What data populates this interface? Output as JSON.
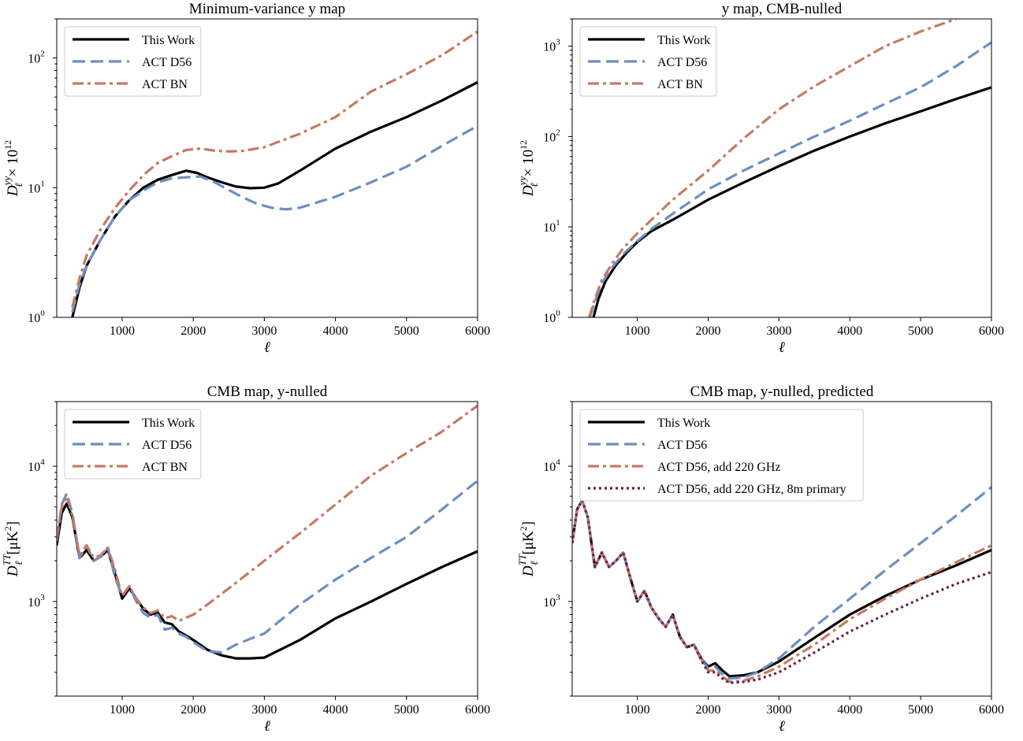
{
  "colors": {
    "black": "#000000",
    "blue": "#6b8fc3",
    "red": "#c67a62",
    "purple": "#6b1f4e"
  },
  "chart_data": [
    {
      "type": "line",
      "title": "Minimum-variance y map",
      "xlabel": "ℓ",
      "ylabel": "D_ℓ^yy × 10^12",
      "xlim": [
        80,
        6000
      ],
      "ylim": [
        1,
        200
      ],
      "yscale": "log",
      "xticks": [
        1000,
        2000,
        3000,
        4000,
        5000,
        6000
      ],
      "yticks": [
        {
          "value": 1,
          "base": "10",
          "exp": "0"
        },
        {
          "value": 10,
          "base": "10",
          "exp": "1"
        },
        {
          "value": 100,
          "base": "10",
          "exp": "2"
        }
      ],
      "legend_position": "top-left",
      "series": [
        {
          "name": "This Work",
          "color": "#000000",
          "style": "solid",
          "x": [
            300,
            400,
            500,
            700,
            900,
            1100,
            1300,
            1500,
            1700,
            1900,
            2050,
            2200,
            2400,
            2600,
            2800,
            3000,
            3200,
            3500,
            4000,
            4500,
            5000,
            5500,
            6000
          ],
          "y": [
            1.0,
            1.7,
            2.5,
            4.0,
            6.0,
            8.0,
            10.0,
            11.5,
            12.5,
            13.5,
            13.0,
            12.0,
            11.0,
            10.2,
            9.9,
            10.0,
            10.8,
            13.5,
            20.0,
            27.0,
            35.0,
            47.0,
            65.0
          ]
        },
        {
          "name": "ACT D56",
          "color": "#6b8fc3",
          "style": "dashed",
          "x": [
            300,
            400,
            500,
            700,
            900,
            1100,
            1300,
            1500,
            1700,
            1900,
            2100,
            2300,
            2500,
            2700,
            2900,
            3100,
            3300,
            3500,
            4000,
            4500,
            5000,
            5500,
            6000
          ],
          "y": [
            1.1,
            1.8,
            2.5,
            4.0,
            6.0,
            8.0,
            9.5,
            11.0,
            11.8,
            12.0,
            12.2,
            11.0,
            9.6,
            8.4,
            7.5,
            7.0,
            6.8,
            7.0,
            8.5,
            11.0,
            14.5,
            21.0,
            30.0
          ]
        },
        {
          "name": "ACT BN",
          "color": "#c67a62",
          "style": "dashdot",
          "x": [
            300,
            400,
            500,
            700,
            900,
            1100,
            1300,
            1500,
            1700,
            1900,
            2100,
            2300,
            2500,
            2700,
            3000,
            3500,
            4000,
            4500,
            5000,
            5500,
            6000
          ],
          "y": [
            1.2,
            2.0,
            3.0,
            4.8,
            7.0,
            9.5,
            12.5,
            15.5,
            17.5,
            19.5,
            20.0,
            19.3,
            19.0,
            19.2,
            20.5,
            26.0,
            35.0,
            55.0,
            75.0,
            105.0,
            160.0
          ]
        }
      ]
    },
    {
      "type": "line",
      "title": "y map, CMB-nulled",
      "xlabel": "ℓ",
      "ylabel": "D_ℓ^yy × 10^12",
      "xlim": [
        80,
        6000
      ],
      "ylim": [
        1,
        2000
      ],
      "yscale": "log",
      "xticks": [
        1000,
        2000,
        3000,
        4000,
        5000,
        6000
      ],
      "yticks": [
        {
          "value": 1,
          "base": "10",
          "exp": "0"
        },
        {
          "value": 10,
          "base": "10",
          "exp": "1"
        },
        {
          "value": 100,
          "base": "10",
          "exp": "2"
        },
        {
          "value": 1000,
          "base": "10",
          "exp": "3"
        }
      ],
      "legend_position": "top-left",
      "series": [
        {
          "name": "This Work",
          "color": "#000000",
          "style": "solid",
          "x": [
            380,
            450,
            550,
            700,
            850,
            1000,
            1200,
            1500,
            2000,
            2500,
            3000,
            3500,
            4000,
            4500,
            5000,
            5500,
            6000
          ],
          "y": [
            1.0,
            1.6,
            2.5,
            3.8,
            5.2,
            6.8,
            9.0,
            12.0,
            20.0,
            31.0,
            47.0,
            70.0,
            100.0,
            140.0,
            190.0,
            260.0,
            350.0
          ]
        },
        {
          "name": "ACT D56",
          "color": "#6b8fc3",
          "style": "dashed",
          "x": [
            330,
            400,
            500,
            650,
            800,
            1000,
            1200,
            1500,
            2000,
            2500,
            3000,
            3500,
            4000,
            4500,
            5000,
            5500,
            6000
          ],
          "y": [
            1.0,
            1.5,
            2.4,
            3.6,
            5.0,
            7.0,
            9.5,
            14.0,
            26.0,
            42.0,
            65.0,
            100.0,
            150.0,
            230.0,
            350.0,
            600.0,
            1100.0
          ]
        },
        {
          "name": "ACT BN",
          "color": "#c67a62",
          "style": "dashdot",
          "x": [
            320,
            400,
            500,
            650,
            800,
            1000,
            1200,
            1500,
            2000,
            2500,
            3000,
            3500,
            4000,
            4500,
            5000,
            5500
          ],
          "y": [
            1.0,
            1.6,
            2.6,
            4.0,
            5.8,
            8.5,
            12.0,
            20.0,
            42.0,
            95.0,
            200.0,
            360.0,
            600.0,
            1000.0,
            1450.0,
            2000.0
          ]
        }
      ]
    },
    {
      "type": "line",
      "title": "CMB map, y-nulled",
      "xlabel": "ℓ",
      "ylabel": "D_ℓ^TT [μK²]",
      "xlim": [
        80,
        6000
      ],
      "ylim": [
        200,
        30000
      ],
      "yscale": "log",
      "xticks": [
        1000,
        2000,
        3000,
        4000,
        5000,
        6000
      ],
      "yticks": [
        {
          "value": 1000,
          "base": "10",
          "exp": "3"
        },
        {
          "value": 10000,
          "base": "10",
          "exp": "4"
        }
      ],
      "legend_position": "top-left",
      "series": [
        {
          "name": "This Work",
          "color": "#000000",
          "style": "solid",
          "x": [
            80,
            150,
            220,
            300,
            400,
            500,
            600,
            700,
            800,
            900,
            1000,
            1100,
            1200,
            1300,
            1400,
            1500,
            1600,
            1700,
            1800,
            1900,
            2000,
            2200,
            2400,
            2600,
            2800,
            3000,
            3500,
            4000,
            4500,
            5000,
            5500,
            6000
          ],
          "y": [
            2600,
            4500,
            5300,
            4200,
            2100,
            2400,
            2000,
            2150,
            2400,
            1600,
            1050,
            1250,
            1050,
            880,
            800,
            830,
            700,
            680,
            600,
            560,
            520,
            440,
            400,
            380,
            380,
            385,
            520,
            750,
            1000,
            1350,
            1800,
            2350
          ]
        },
        {
          "name": "ACT D56",
          "color": "#6b8fc3",
          "style": "dashed",
          "x": [
            80,
            150,
            220,
            300,
            400,
            500,
            600,
            700,
            800,
            900,
            1000,
            1100,
            1200,
            1300,
            1400,
            1500,
            1600,
            1700,
            1800,
            1900,
            2000,
            2200,
            2400,
            2600,
            2800,
            3000,
            3500,
            4000,
            4500,
            5000,
            5500,
            6000
          ],
          "y": [
            2800,
            5200,
            6300,
            4500,
            2100,
            2600,
            2000,
            2150,
            2500,
            1500,
            1100,
            1300,
            1000,
            820,
            760,
            800,
            620,
            640,
            580,
            550,
            500,
            430,
            420,
            480,
            530,
            580,
            950,
            1450,
            2100,
            3000,
            4800,
            7800
          ]
        },
        {
          "name": "ACT BN",
          "color": "#c67a62",
          "style": "dashdot",
          "x": [
            80,
            150,
            220,
            300,
            400,
            500,
            600,
            700,
            800,
            900,
            1000,
            1100,
            1200,
            1300,
            1400,
            1500,
            1600,
            1700,
            1800,
            1900,
            2000,
            2200,
            2500,
            3000,
            3500,
            4000,
            4500,
            5000,
            5500,
            6000
          ],
          "y": [
            3000,
            5000,
            6000,
            4300,
            2200,
            2600,
            2100,
            2200,
            2500,
            1700,
            1100,
            1300,
            1050,
            900,
            820,
            860,
            750,
            780,
            720,
            760,
            800,
            950,
            1250,
            2000,
            3200,
            5200,
            8500,
            12500,
            18000,
            28000
          ]
        }
      ]
    },
    {
      "type": "line",
      "title": "CMB map, y-nulled, predicted",
      "xlabel": "ℓ",
      "ylabel": "D_ℓ^TT [μK²]",
      "xlim": [
        80,
        6000
      ],
      "ylim": [
        200,
        30000
      ],
      "yscale": "log",
      "xticks": [
        1000,
        2000,
        3000,
        4000,
        5000,
        6000
      ],
      "yticks": [
        {
          "value": 1000,
          "base": "10",
          "exp": "3"
        },
        {
          "value": 10000,
          "base": "10",
          "exp": "4"
        }
      ],
      "legend_position": "top-left",
      "series": [
        {
          "name": "This Work",
          "color": "#000000",
          "style": "solid",
          "x": [
            80,
            150,
            220,
            300,
            400,
            500,
            600,
            700,
            800,
            900,
            1000,
            1100,
            1200,
            1300,
            1400,
            1500,
            1600,
            1700,
            1800,
            1900,
            2000,
            2100,
            2200,
            2300,
            2500,
            2700,
            3000,
            3500,
            4000,
            4500,
            5000,
            5500,
            6000
          ],
          "y": [
            2700,
            4800,
            5600,
            4200,
            1800,
            2300,
            1800,
            2000,
            2300,
            1500,
            1000,
            1200,
            900,
            750,
            650,
            800,
            550,
            460,
            480,
            380,
            330,
            350,
            310,
            280,
            285,
            300,
            360,
            540,
            800,
            1100,
            1450,
            1850,
            2400
          ]
        },
        {
          "name": "ACT D56",
          "color": "#6b8fc3",
          "style": "dashed",
          "x": [
            80,
            150,
            220,
            300,
            400,
            500,
            600,
            700,
            800,
            900,
            1000,
            1100,
            1200,
            1300,
            1400,
            1500,
            1600,
            1700,
            1800,
            1900,
            2000,
            2100,
            2200,
            2300,
            2500,
            2700,
            3000,
            3500,
            4000,
            4500,
            5000,
            5500,
            6000
          ],
          "y": [
            2700,
            4800,
            5600,
            4200,
            1800,
            2300,
            1800,
            2000,
            2300,
            1500,
            1000,
            1200,
            900,
            750,
            650,
            800,
            550,
            460,
            480,
            380,
            320,
            330,
            290,
            270,
            275,
            300,
            380,
            650,
            1050,
            1700,
            2700,
            4300,
            7000
          ]
        },
        {
          "name": "ACT D56, add 220 GHz",
          "color": "#c67a62",
          "style": "dashdot",
          "x": [
            80,
            150,
            220,
            300,
            400,
            500,
            600,
            700,
            800,
            900,
            1000,
            1100,
            1200,
            1300,
            1400,
            1500,
            1600,
            1700,
            1800,
            1900,
            2000,
            2100,
            2200,
            2300,
            2500,
            2700,
            3000,
            3500,
            4000,
            4500,
            5000,
            5500,
            6000
          ],
          "y": [
            2700,
            4800,
            5600,
            4200,
            1800,
            2300,
            1800,
            2000,
            2300,
            1500,
            1000,
            1200,
            900,
            750,
            650,
            800,
            550,
            460,
            480,
            370,
            310,
            310,
            280,
            255,
            260,
            280,
            330,
            480,
            740,
            1050,
            1450,
            1950,
            2600
          ]
        },
        {
          "name": "ACT D56, add 220 GHz, 8m primary",
          "color": "#6b1f4e",
          "style": "dotted",
          "x": [
            80,
            150,
            220,
            300,
            400,
            500,
            600,
            700,
            800,
            900,
            1000,
            1100,
            1200,
            1300,
            1400,
            1500,
            1600,
            1700,
            1800,
            1900,
            2000,
            2100,
            2200,
            2300,
            2500,
            2700,
            3000,
            3500,
            4000,
            4500,
            5000,
            5500,
            6000
          ],
          "y": [
            2700,
            4800,
            5600,
            4200,
            1800,
            2300,
            1800,
            2000,
            2300,
            1500,
            1000,
            1200,
            900,
            750,
            650,
            800,
            550,
            460,
            480,
            370,
            300,
            300,
            270,
            250,
            255,
            265,
            300,
            420,
            600,
            800,
            1050,
            1350,
            1650
          ]
        }
      ]
    }
  ]
}
